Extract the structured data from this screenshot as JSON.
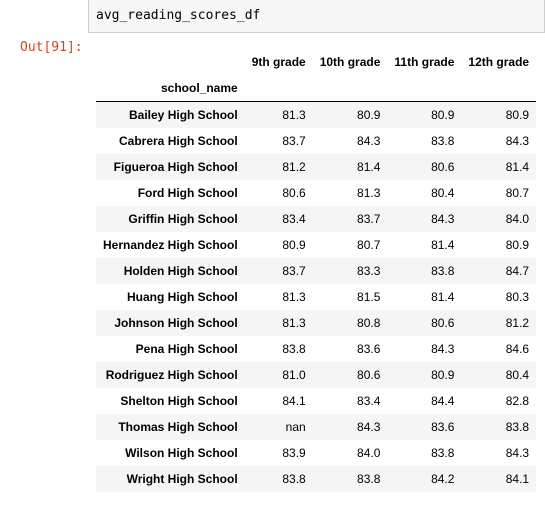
{
  "input": {
    "code": "avg_reading_scores_df"
  },
  "output": {
    "prompt": "Out[91]:",
    "columns": [
      "9th grade",
      "10th grade",
      "11th grade",
      "12th grade"
    ],
    "index_name": "school_name",
    "rows": [
      {
        "school": "Bailey High School",
        "values": [
          "81.3",
          "80.9",
          "80.9",
          "80.9"
        ]
      },
      {
        "school": "Cabrera High School",
        "values": [
          "83.7",
          "84.3",
          "83.8",
          "84.3"
        ]
      },
      {
        "school": "Figueroa High School",
        "values": [
          "81.2",
          "81.4",
          "80.6",
          "81.4"
        ]
      },
      {
        "school": "Ford High School",
        "values": [
          "80.6",
          "81.3",
          "80.4",
          "80.7"
        ]
      },
      {
        "school": "Griffin High School",
        "values": [
          "83.4",
          "83.7",
          "84.3",
          "84.0"
        ]
      },
      {
        "school": "Hernandez High School",
        "values": [
          "80.9",
          "80.7",
          "81.4",
          "80.9"
        ]
      },
      {
        "school": "Holden High School",
        "values": [
          "83.7",
          "83.3",
          "83.8",
          "84.7"
        ]
      },
      {
        "school": "Huang High School",
        "values": [
          "81.3",
          "81.5",
          "81.4",
          "80.3"
        ]
      },
      {
        "school": "Johnson High School",
        "values": [
          "81.3",
          "80.8",
          "80.6",
          "81.2"
        ]
      },
      {
        "school": "Pena High School",
        "values": [
          "83.8",
          "83.6",
          "84.3",
          "84.6"
        ]
      },
      {
        "school": "Rodriguez High School",
        "values": [
          "81.0",
          "80.6",
          "80.9",
          "80.4"
        ]
      },
      {
        "school": "Shelton High School",
        "values": [
          "84.1",
          "83.4",
          "84.4",
          "82.8"
        ]
      },
      {
        "school": "Thomas High School",
        "values": [
          "nan",
          "84.3",
          "83.6",
          "83.8"
        ]
      },
      {
        "school": "Wilson High School",
        "values": [
          "83.9",
          "84.0",
          "83.8",
          "84.3"
        ]
      },
      {
        "school": "Wright High School",
        "values": [
          "83.8",
          "83.8",
          "84.2",
          "84.1"
        ]
      }
    ]
  }
}
